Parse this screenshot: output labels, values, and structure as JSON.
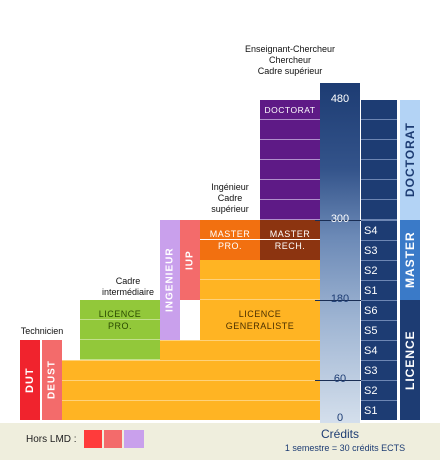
{
  "labels": {
    "teacher": [
      "Enseignant-Chercheur",
      "Chercheur",
      "Cadre supérieur"
    ],
    "engineer": [
      "Ingénieur",
      "Cadre",
      "supérieur"
    ],
    "middle": [
      "Cadre",
      "intermédiaire"
    ],
    "tech": "Technicien"
  },
  "blocks": {
    "doctorat": "DOCTORAT",
    "master_pro": [
      "MASTER",
      "PRO."
    ],
    "master_rech": [
      "MASTER",
      "RECH."
    ],
    "licence_pro": [
      "LICENCE",
      "PRO."
    ],
    "licence_gen": [
      "LICENCE",
      "GENERALISTE"
    ],
    "ingenieur": "INGENIEUR",
    "iup": "IUP",
    "dut": "DUT",
    "deust": "DEUST"
  },
  "scale": [
    "480",
    "300",
    "180",
    "60",
    "0"
  ],
  "semesters": [
    "S4",
    "S3",
    "S2",
    "S1",
    "S6",
    "S5",
    "S4",
    "S3",
    "S2",
    "S1"
  ],
  "levels": [
    "DOCTORAT",
    "MASTER",
    "LICENCE"
  ],
  "credits": {
    "title": "Crédits",
    "note": "1 semestre = 30 crédits ECTS"
  },
  "legend": {
    "label": "Hors LMD :"
  },
  "colors": {
    "doctorat": "#5e1a86",
    "master_pro": "#f27010",
    "master_rech": "#8c3410",
    "licence": "#ffb423",
    "licence_pro": "#92c83a",
    "ingenieur": "#c9a0ec",
    "iup": "#f36b6b",
    "dut": "#f0232d",
    "semester": "#1d3c73",
    "level_doctorat": "#b3d3f5",
    "level_master": "#3a7ac8",
    "level_licence": "#1d3c73",
    "legend_red": "#ff3b3b",
    "legend_salmon": "#f36b6b",
    "legend_lilac": "#c9a0ec"
  }
}
